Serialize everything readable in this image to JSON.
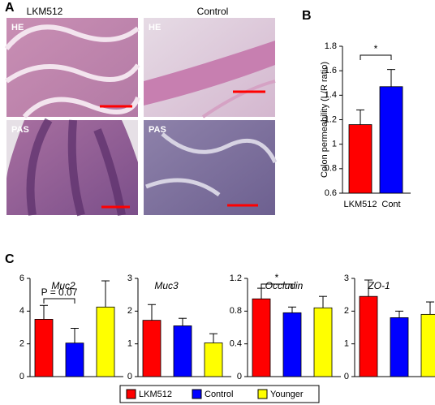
{
  "panel_labels": [
    "A",
    "B",
    "C"
  ],
  "histology": {
    "columns": [
      "LKM512",
      "Control"
    ],
    "stains": [
      "HE",
      "PAS"
    ]
  },
  "legend": [
    {
      "name": "LKM512",
      "color": "#ff0000"
    },
    {
      "name": "Control",
      "color": "#0000ff"
    },
    {
      "name": "Younger",
      "color": "#ffff00"
    }
  ],
  "chart_data": [
    {
      "type": "bar",
      "categories": [
        "LKM512",
        "Cont"
      ],
      "values": [
        1.16,
        1.47
      ],
      "errors": [
        0.12,
        0.14
      ],
      "colors": [
        "#ff0000",
        "#0000ff"
      ],
      "y_label": "Colon permeability (L/R ratio)",
      "ylim": [
        0.6,
        1.8
      ],
      "yticks": [
        0.6,
        0.8,
        1,
        1.2,
        1.4,
        1.6,
        1.8
      ],
      "annotation": "*"
    },
    {
      "type": "bar",
      "title": "Muc2",
      "categories": [
        null,
        null,
        null
      ],
      "values": [
        3.5,
        2.05,
        4.25
      ],
      "errors": [
        0.85,
        0.9,
        1.6
      ],
      "ylim": [
        0,
        6
      ],
      "yticks": [
        0,
        2,
        4,
        6
      ],
      "annotation": "P = 0.07"
    },
    {
      "type": "bar",
      "title": "Muc3",
      "categories": [
        null,
        null,
        null
      ],
      "values": [
        1.72,
        1.55,
        1.03
      ],
      "errors": [
        0.48,
        0.23,
        0.28
      ],
      "ylim": [
        0,
        3
      ],
      "yticks": [
        0,
        1,
        2,
        3
      ]
    },
    {
      "type": "bar",
      "title": "Occludin",
      "categories": [
        null,
        null,
        null
      ],
      "values": [
        0.95,
        0.78,
        0.84
      ],
      "errors": [
        0.13,
        0.07,
        0.14
      ],
      "ylim": [
        0,
        1.2
      ],
      "yticks": [
        0,
        0.4,
        0.8,
        1.2
      ],
      "annotation": "*"
    },
    {
      "type": "bar",
      "title": "ZO-1",
      "categories": [
        null,
        null,
        null
      ],
      "values": [
        2.45,
        1.8,
        1.9
      ],
      "errors": [
        0.5,
        0.2,
        0.38
      ],
      "ylim": [
        0,
        3
      ],
      "yticks": [
        0,
        1,
        2,
        3
      ]
    }
  ]
}
